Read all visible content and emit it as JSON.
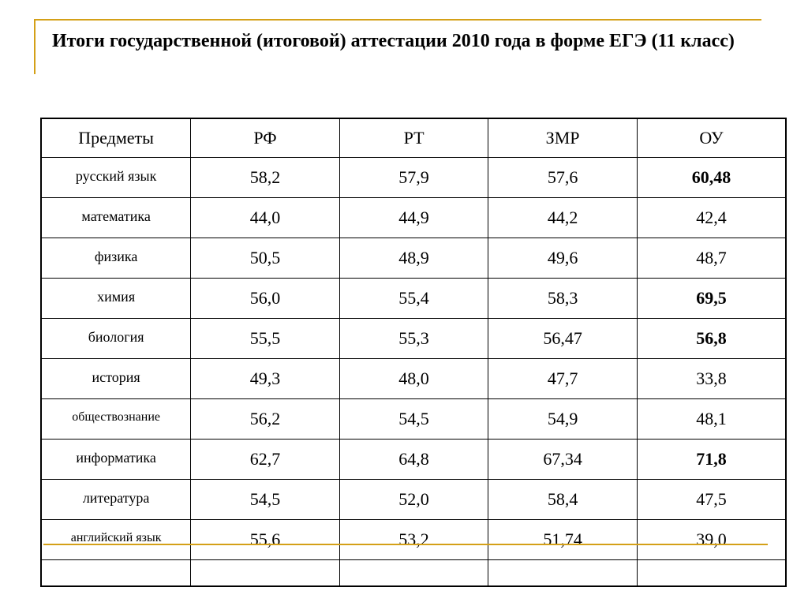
{
  "title": "Итоги государственной (итоговой) аттестации 2010 года в форме ЕГЭ (11 класс)",
  "colors": {
    "accent": "#d4a017"
  },
  "table": {
    "headers": [
      "Предметы",
      "РФ",
      "РТ",
      "ЗМР",
      "ОУ"
    ],
    "rows": [
      {
        "subject": "русский язык",
        "rf": "58,2",
        "rt": "57,9",
        "zmr": "57,6",
        "ou": "60,48",
        "ou_bold": true
      },
      {
        "subject": "математика",
        "rf": "44,0",
        "rt": "44,9",
        "zmr": "44,2",
        "ou": "42,4",
        "ou_bold": false
      },
      {
        "subject": "физика",
        "rf": "50,5",
        "rt": "48,9",
        "zmr": "49,6",
        "ou": "48,7",
        "ou_bold": false
      },
      {
        "subject": "химия",
        "rf": "56,0",
        "rt": "55,4",
        "zmr": "58,3",
        "ou": "69,5",
        "ou_bold": true
      },
      {
        "subject": "биология",
        "rf": "55,5",
        "rt": "55,3",
        "zmr": "56,47",
        "ou": "56,8",
        "ou_bold": true
      },
      {
        "subject": "история",
        "rf": "49,3",
        "rt": "48,0",
        "zmr": "47,7",
        "ou": "33,8",
        "ou_bold": false
      },
      {
        "subject": "обществознание",
        "rf": "56,2",
        "rt": "54,5",
        "zmr": "54,9",
        "ou": "48,1",
        "ou_bold": false
      },
      {
        "subject": "информатика",
        "rf": "62,7",
        "rt": "64,8",
        "zmr": "67,34",
        "ou": "71,8",
        "ou_bold": true
      },
      {
        "subject": "литература",
        "rf": "54,5",
        "rt": "52,0",
        "zmr": "58,4",
        "ou": "47,5",
        "ou_bold": false
      },
      {
        "subject": "английский язык",
        "rf": "55,6",
        "rt": "53,2",
        "zmr": "51,74",
        "ou": "39,0",
        "ou_bold": false
      }
    ]
  }
}
